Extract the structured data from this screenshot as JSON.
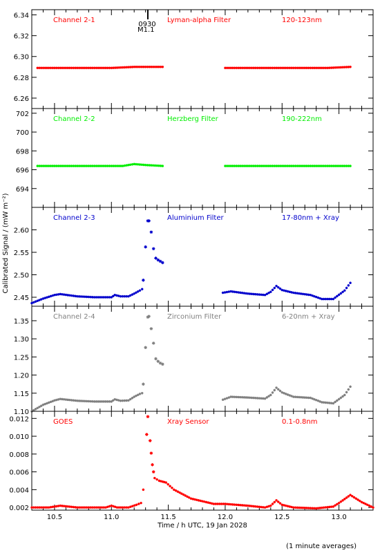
{
  "figure": {
    "xlabel": "Time / h UTC, 19 Jan 2028",
    "ylabel": "Calibrated Signal / (mW m⁻²)",
    "footnote": "(1 minute averages)",
    "event_marker": {
      "x": 11.32,
      "label_1": "0930",
      "label_2": "M1.1"
    }
  },
  "chart_data": [
    {
      "type": "scatter",
      "name": "Channel 2-1",
      "filter": "Lyman-alpha Filter",
      "band": "120-123nm",
      "color": "#ff0000",
      "xlim": [
        10.3,
        13.3
      ],
      "ylim": [
        6.25,
        6.345
      ],
      "yticks": [
        6.26,
        6.28,
        6.3,
        6.32,
        6.34
      ],
      "ytick_labels": [
        "6.26",
        "6.28",
        "6.30",
        "6.32",
        "6.34"
      ],
      "series": [
        {
          "x": [
            10.35,
            10.5,
            10.75,
            11.0,
            11.2,
            11.45
          ],
          "y": [
            6.289,
            6.289,
            6.289,
            6.289,
            6.29,
            6.29
          ]
        },
        {
          "x": [
            12.0,
            12.3,
            12.6,
            12.9,
            13.1
          ],
          "y": [
            6.289,
            6.289,
            6.289,
            6.289,
            6.29
          ]
        }
      ]
    },
    {
      "type": "scatter",
      "name": "Channel 2-2",
      "filter": "Herzberg Filter",
      "band": "190-222nm",
      "color": "#00ee00",
      "xlim": [
        10.3,
        13.3
      ],
      "ylim": [
        692.0,
        702.5
      ],
      "yticks": [
        694,
        696,
        698,
        700,
        702
      ],
      "ytick_labels": [
        "694",
        "696",
        "698",
        "700",
        "702"
      ],
      "series": [
        {
          "x": [
            10.35,
            10.6,
            10.9,
            11.1,
            11.2,
            11.3,
            11.45
          ],
          "y": [
            696.4,
            696.4,
            696.4,
            696.4,
            696.6,
            696.5,
            696.4
          ]
        },
        {
          "x": [
            12.0,
            12.3,
            12.6,
            12.9,
            13.1
          ],
          "y": [
            696.4,
            696.4,
            696.4,
            696.4,
            696.4
          ]
        }
      ]
    },
    {
      "type": "scatter",
      "name": "Channel 2-3",
      "filter": "Aluminium Filter",
      "band": "17-80nm + Xray",
      "color": "#0000cc",
      "xlim": [
        10.3,
        13.3
      ],
      "ylim": [
        2.43,
        2.65
      ],
      "yticks": [
        2.45,
        2.5,
        2.55,
        2.6
      ],
      "ytick_labels": [
        "2.45",
        "2.50",
        "2.55",
        "2.60"
      ],
      "series": [
        {
          "x": [
            10.3,
            10.4,
            10.5,
            10.55,
            10.7,
            10.85,
            11.0,
            11.03,
            11.08,
            11.15,
            11.2,
            11.25,
            11.27
          ],
          "y": [
            2.437,
            2.447,
            2.455,
            2.457,
            2.452,
            2.45,
            2.45,
            2.455,
            2.452,
            2.452,
            2.458,
            2.465,
            2.468
          ]
        },
        {
          "x": [
            11.28,
            11.3,
            11.32,
            11.33,
            11.35,
            11.37,
            11.39,
            11.41,
            11.43,
            11.45
          ],
          "y": [
            2.488,
            2.562,
            2.62,
            2.62,
            2.595,
            2.558,
            2.537,
            2.533,
            2.53,
            2.527
          ]
        },
        {
          "x": [
            11.98,
            12.05,
            12.2,
            12.35,
            12.4,
            12.45,
            12.5,
            12.6,
            12.75,
            12.85,
            12.95,
            13.05,
            13.1
          ],
          "y": [
            2.46,
            2.463,
            2.458,
            2.455,
            2.462,
            2.475,
            2.466,
            2.46,
            2.455,
            2.446,
            2.446,
            2.465,
            2.482
          ]
        }
      ]
    },
    {
      "type": "scatter",
      "name": "Channel 2-4",
      "filter": "Zirconium Filter",
      "band": "6-20nm + Xray",
      "color": "#808080",
      "xlim": [
        10.3,
        13.3
      ],
      "ylim": [
        1.1,
        1.39
      ],
      "yticks": [
        1.1,
        1.15,
        1.2,
        1.25,
        1.3,
        1.35
      ],
      "ytick_labels": [
        "1.10",
        "1.15",
        "1.20",
        "1.25",
        "1.30",
        "1.35"
      ],
      "series": [
        {
          "x": [
            10.3,
            10.4,
            10.5,
            10.55,
            10.7,
            10.85,
            11.0,
            11.03,
            11.08,
            11.15,
            11.2,
            11.25,
            11.27
          ],
          "y": [
            1.1,
            1.118,
            1.13,
            1.134,
            1.129,
            1.127,
            1.127,
            1.133,
            1.129,
            1.13,
            1.14,
            1.148,
            1.15
          ]
        },
        {
          "x": [
            11.28,
            11.3,
            11.32,
            11.33,
            11.35,
            11.37,
            11.39,
            11.41,
            11.43,
            11.45
          ],
          "y": [
            1.175,
            1.276,
            1.36,
            1.362,
            1.328,
            1.288,
            1.245,
            1.238,
            1.233,
            1.23
          ]
        },
        {
          "x": [
            11.98,
            12.05,
            12.2,
            12.35,
            12.4,
            12.45,
            12.5,
            12.6,
            12.75,
            12.85,
            12.95,
            13.05,
            13.1
          ],
          "y": [
            1.132,
            1.14,
            1.138,
            1.135,
            1.145,
            1.165,
            1.152,
            1.14,
            1.137,
            1.125,
            1.122,
            1.145,
            1.168
          ]
        }
      ]
    },
    {
      "type": "scatter",
      "name": "GOES",
      "filter": "Xray Sensor",
      "band": "0.1-0.8nm",
      "color": "#ff0000",
      "xlim": [
        10.3,
        13.3
      ],
      "ylim": [
        0.0017,
        0.0128
      ],
      "yticks": [
        0.002,
        0.004,
        0.006,
        0.008,
        0.01,
        0.012
      ],
      "ytick_labels": [
        "0.002",
        "0.004",
        "0.006",
        "0.008",
        "0.010",
        "0.012"
      ],
      "series": [
        {
          "x": [
            10.3,
            10.45,
            10.55,
            10.7,
            10.95,
            11.0,
            11.05,
            11.15,
            11.22,
            11.26,
            11.28
          ],
          "y": [
            0.002,
            0.002,
            0.0022,
            0.002,
            0.002,
            0.0022,
            0.002,
            0.002,
            0.0023,
            0.0025,
            0.004
          ]
        },
        {
          "x": [
            11.31,
            11.32,
            11.34,
            11.35,
            11.36,
            11.37
          ],
          "y": [
            0.0102,
            0.0122,
            0.0095,
            0.0081,
            0.0068,
            0.006
          ]
        },
        {
          "x": [
            11.38,
            11.42,
            11.48,
            11.55,
            11.7,
            11.9,
            12.0,
            12.2,
            12.35,
            12.4,
            12.45,
            12.5,
            12.6,
            12.8,
            12.95,
            13.0,
            13.1,
            13.2,
            13.3
          ],
          "y": [
            0.0053,
            0.005,
            0.0048,
            0.004,
            0.003,
            0.0024,
            0.0024,
            0.0022,
            0.002,
            0.0022,
            0.0028,
            0.0023,
            0.002,
            0.0019,
            0.0021,
            0.0025,
            0.0034,
            0.0026,
            0.002
          ]
        }
      ]
    }
  ]
}
